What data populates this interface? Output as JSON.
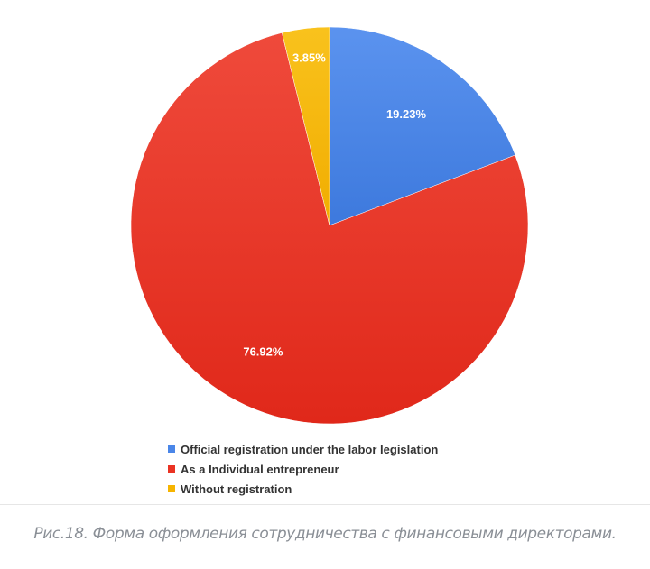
{
  "chart_data": {
    "type": "pie",
    "categories": [
      "Official registration under the labor legislation",
      "As a Individual entrepreneur",
      "Without registration"
    ],
    "values": [
      19.23,
      76.92,
      3.85
    ],
    "labels": [
      "19.23%",
      "76.92%",
      "3.85%"
    ],
    "colors": [
      "#4a86e8",
      "#ea3323",
      "#f6b400"
    ],
    "start_angle": "12 o'clock",
    "direction": "clockwise",
    "legend_position": "bottom"
  },
  "caption": "Рис.18. Форма оформления сотрудничества с финансовыми директорами."
}
